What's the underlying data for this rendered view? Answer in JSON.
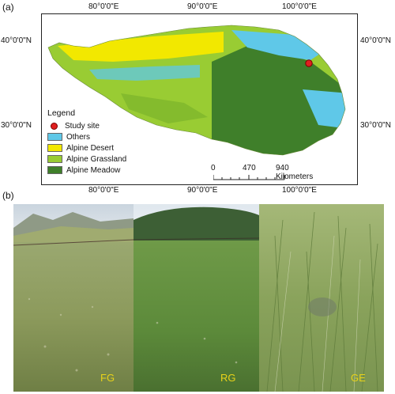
{
  "panel_a_label": "(a)",
  "panel_b_label": "(b)",
  "map": {
    "top_lon_labels": [
      "80°0'0\"E",
      "90°0'0\"E",
      "100°0'0\"E"
    ],
    "bottom_lon_labels": [
      "80°0'0\"E",
      "90°0'0\"E",
      "100°0'0\"E"
    ],
    "left_lat_labels": [
      "40°0'0\"N",
      "30°0'0\"N"
    ],
    "right_lat_labels": [
      "40°0'0\"N",
      "30°0'0\"N"
    ],
    "colors": {
      "others": "#5fc8e8",
      "alpine_desert": "#f2e800",
      "alpine_grassland": "#99cc33",
      "alpine_meadow": "#3f7f2a",
      "study_site": "#e02020"
    }
  },
  "legend": {
    "title": "Legend",
    "items": [
      {
        "label": "Study site",
        "kind": "dot",
        "color": "#e02020"
      },
      {
        "label": "Others",
        "kind": "swatch",
        "color": "#5fc8e8"
      },
      {
        "label": "Alpine Desert",
        "kind": "swatch",
        "color": "#f2e800"
      },
      {
        "label": "Alpine Grassland",
        "kind": "swatch",
        "color": "#99cc33"
      },
      {
        "label": "Alpine Meadow",
        "kind": "swatch",
        "color": "#3f7f2a"
      }
    ]
  },
  "scale_bar": {
    "labels": [
      "0",
      "470",
      "940 Kilometers"
    ]
  },
  "photos": [
    {
      "caption": "FG"
    },
    {
      "caption": "RG"
    },
    {
      "caption": "GE"
    }
  ]
}
